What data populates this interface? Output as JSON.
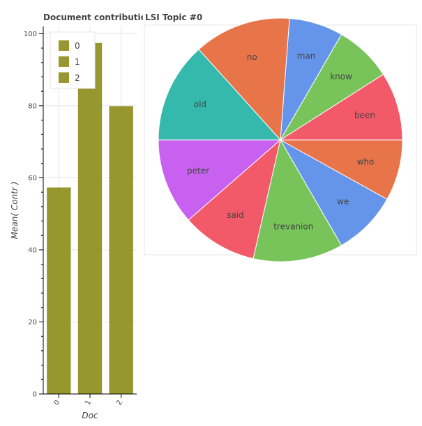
{
  "chart_data": [
    {
      "type": "bar",
      "title": "Document contribution",
      "categories": [
        "0",
        "1",
        "2"
      ],
      "values": [
        57.3,
        97.4,
        79.9
      ],
      "xlabel": "Doc",
      "ylabel": "Mean( Contr )",
      "ylim": [
        0,
        102
      ],
      "yticks": [
        0,
        20,
        40,
        60,
        80,
        100
      ],
      "grid": true,
      "legend": [
        "0",
        "1",
        "2"
      ],
      "legend_position": "top-left",
      "bar_color": "#8c8c1a"
    },
    {
      "type": "pie",
      "title": "LSI Topic #0",
      "labels": [
        "been",
        "know",
        "man",
        "no",
        "old",
        "peter",
        "said",
        "trevanion",
        "we",
        "who"
      ],
      "values": [
        0.95,
        0.8,
        0.75,
        1.35,
        1.4,
        1.2,
        1.05,
        1.25,
        0.9,
        0.85
      ],
      "colors": [
        "#f25a6a",
        "#78c45a",
        "#6595ea",
        "#e8744a",
        "#35b9ac",
        "#c861ef",
        "#f25a6a",
        "#78c45a",
        "#6595ea",
        "#e8744a"
      ]
    }
  ]
}
